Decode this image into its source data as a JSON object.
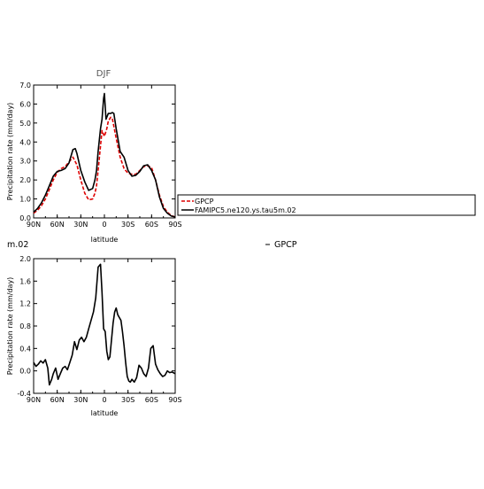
{
  "figure": {
    "title_top": "DJF",
    "cut_label": "m.02",
    "right_label": "GPCP"
  },
  "legend": {
    "items": [
      {
        "label": "GPCP",
        "color": "#dd0000",
        "dashed": true
      },
      {
        "label": "FAMIPC5.ne120.ys.tau5m.02",
        "color": "#000000",
        "dashed": false
      }
    ]
  },
  "chart_data": [
    {
      "type": "line",
      "title": "DJF",
      "xlabel": "latitude",
      "ylabel": "Precipitation rate (mm/day)",
      "xlim": [
        90,
        -90
      ],
      "ylim": [
        0,
        7
      ],
      "xticks": [
        90,
        60,
        30,
        0,
        -30,
        -60,
        -90
      ],
      "xticklabels": [
        "90N",
        "60N",
        "30N",
        "0",
        "30S",
        "60S",
        "90S"
      ],
      "yticks": [
        0,
        1,
        2,
        3,
        4,
        5,
        6,
        7
      ],
      "yticklabels": [
        "0.0",
        "1.0",
        "2.0",
        "3.0",
        "4.0",
        "5.0",
        "6.0",
        "7.0"
      ],
      "series": [
        {
          "name": "GPCP",
          "color": "#dd0000",
          "dashed": true,
          "x": [
            90,
            85,
            80,
            75,
            70,
            65,
            60,
            55,
            50,
            45,
            40,
            35,
            30,
            25,
            20,
            15,
            12,
            10,
            8,
            5,
            3,
            0,
            -3,
            -5,
            -8,
            -10,
            -15,
            -20,
            -25,
            -30,
            -35,
            -40,
            -45,
            -50,
            -55,
            -60,
            -65,
            -70,
            -75,
            -80,
            -85,
            -90
          ],
          "y": [
            0.25,
            0.4,
            0.65,
            1.0,
            1.5,
            2.0,
            2.4,
            2.6,
            2.7,
            2.95,
            3.2,
            2.8,
            2.0,
            1.3,
            0.95,
            1.0,
            1.3,
            1.7,
            2.5,
            3.8,
            4.6,
            4.3,
            4.7,
            5.1,
            5.3,
            5.25,
            4.2,
            3.2,
            2.6,
            2.35,
            2.3,
            2.3,
            2.5,
            2.7,
            2.75,
            2.65,
            2.0,
            1.2,
            0.6,
            0.3,
            0.12,
            0.05
          ]
        },
        {
          "name": "FAMIPC5.ne120.ys.tau5m.02",
          "color": "#000000",
          "dashed": false,
          "x": [
            90,
            85,
            80,
            75,
            70,
            65,
            60,
            55,
            50,
            45,
            40,
            37,
            35,
            30,
            25,
            20,
            15,
            12,
            10,
            8,
            5,
            3,
            1,
            0,
            -2,
            -5,
            -8,
            -10,
            -12,
            -15,
            -20,
            -25,
            -30,
            -35,
            -40,
            -45,
            -50,
            -55,
            -60,
            -65,
            -70,
            -75,
            -80,
            -85,
            -90
          ],
          "y": [
            0.3,
            0.5,
            0.8,
            1.2,
            1.7,
            2.2,
            2.45,
            2.5,
            2.6,
            2.9,
            3.6,
            3.65,
            3.4,
            2.5,
            1.9,
            1.45,
            1.55,
            2.0,
            2.5,
            3.5,
            4.7,
            5.2,
            6.3,
            6.55,
            5.2,
            5.5,
            5.5,
            5.55,
            5.5,
            4.7,
            3.5,
            3.2,
            2.5,
            2.2,
            2.25,
            2.45,
            2.75,
            2.8,
            2.5,
            2.0,
            1.1,
            0.5,
            0.25,
            0.1,
            0.05
          ]
        }
      ]
    },
    {
      "type": "line",
      "title": "",
      "xlabel": "latitude",
      "ylabel": "Precipitation rate (mm/day)",
      "xlim": [
        90,
        -90
      ],
      "ylim": [
        -0.4,
        2.0
      ],
      "xticks": [
        90,
        60,
        30,
        0,
        -30,
        -60,
        -90
      ],
      "xticklabels": [
        "90N",
        "60N",
        "30N",
        "0",
        "30S",
        "60S",
        "90S"
      ],
      "yticks": [
        -0.4,
        0.0,
        0.4,
        0.8,
        1.2,
        1.6,
        2.0
      ],
      "yticklabels": [
        "-0.4",
        "0.0",
        "0.4",
        "0.8",
        "1.2",
        "1.6",
        "2.0"
      ],
      "series": [
        {
          "color": "#000000",
          "dashed": false,
          "x": [
            90,
            87,
            84,
            81,
            78,
            75,
            72,
            70,
            67,
            65,
            62,
            59,
            56,
            53,
            50,
            47,
            44,
            41,
            38,
            35,
            32,
            29,
            26,
            23,
            20,
            17,
            14,
            11,
            8,
            5,
            3,
            1,
            -1,
            -3,
            -5,
            -7,
            -9,
            -11,
            -13,
            -15,
            -17,
            -19,
            -21,
            -23,
            -25,
            -27,
            -29,
            -31,
            -33,
            -35,
            -38,
            -41,
            -44,
            -47,
            -50,
            -53,
            -56,
            -59,
            -62,
            -65,
            -68,
            -71,
            -74,
            -77,
            -80,
            -83,
            -86,
            -90
          ],
          "y": [
            0.15,
            0.08,
            0.12,
            0.18,
            0.14,
            0.2,
            0.05,
            -0.25,
            -0.15,
            -0.05,
            0.05,
            -0.15,
            -0.05,
            0.05,
            0.08,
            0.02,
            0.15,
            0.28,
            0.52,
            0.38,
            0.55,
            0.6,
            0.52,
            0.6,
            0.75,
            0.9,
            1.05,
            1.3,
            1.85,
            1.9,
            1.4,
            0.75,
            0.7,
            0.35,
            0.2,
            0.25,
            0.55,
            0.85,
            1.05,
            1.12,
            1.0,
            0.95,
            0.9,
            0.7,
            0.45,
            0.15,
            -0.1,
            -0.18,
            -0.2,
            -0.15,
            -0.2,
            -0.12,
            0.1,
            0.05,
            -0.05,
            -0.1,
            0.05,
            0.4,
            0.45,
            0.12,
            0.02,
            -0.05,
            -0.1,
            -0.08,
            0.0,
            -0.03,
            -0.02,
            -0.05
          ]
        }
      ]
    }
  ]
}
